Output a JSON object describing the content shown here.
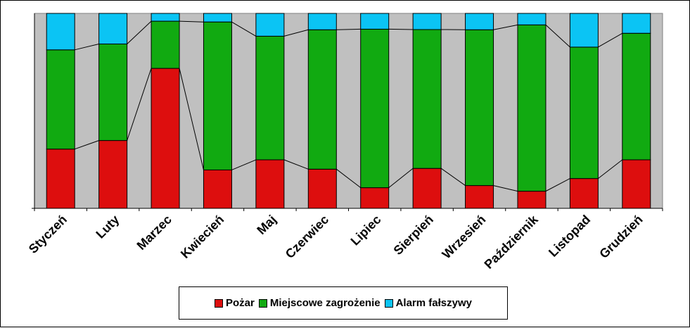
{
  "chart_data": {
    "type": "bar",
    "stacked": true,
    "normalized": true,
    "categories": [
      "Styczeń",
      "Luty",
      "Marzec",
      "Kwiecień",
      "Maj",
      "Czerwiec",
      "Lipiec",
      "Sierpień",
      "Wrzesień",
      "Październik",
      "Listopad",
      "Grudzień"
    ],
    "series": [
      {
        "name": "Pożar",
        "color": "#dd0e0e",
        "values": [
          30.4,
          34.8,
          71.8,
          19.7,
          24.9,
          20.1,
          10.6,
          20.5,
          11.7,
          8.8,
          15.3,
          24.9
        ]
      },
      {
        "name": "Miejscowe zagrożenie",
        "color": "#11aa11",
        "values": [
          50.9,
          49.5,
          24.2,
          75.9,
          63.4,
          71.5,
          81.3,
          71.2,
          79.9,
          85.3,
          67.4,
          64.9
        ]
      },
      {
        "name": "Alarm fałszywy",
        "color": "#0bc4f4",
        "values": [
          18.7,
          15.7,
          4.0,
          4.4,
          11.7,
          8.4,
          8.1,
          8.3,
          8.4,
          5.9,
          17.3,
          10.2
        ]
      }
    ],
    "ylim": [
      0,
      100
    ],
    "plot_background": "#c0c0c0",
    "legend_position": "bottom",
    "series_lines": true,
    "grid": false
  }
}
